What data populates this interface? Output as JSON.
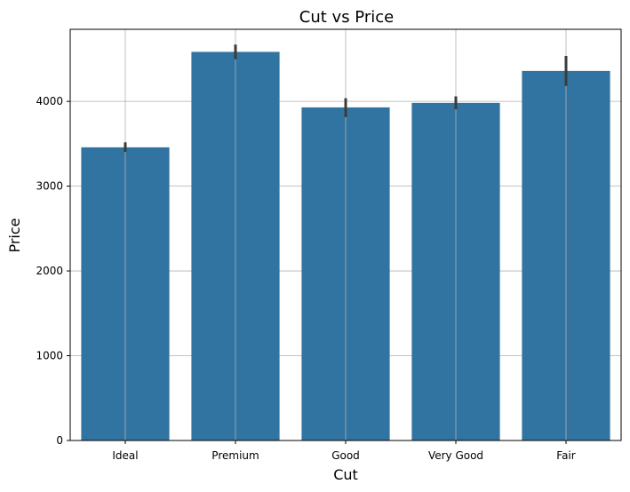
{
  "chart_data": {
    "type": "bar",
    "title": "Cut vs Price",
    "xlabel": "Cut",
    "ylabel": "Price",
    "categories": [
      "Ideal",
      "Premium",
      "Good",
      "Very Good",
      "Fair"
    ],
    "values": [
      3458,
      4584,
      3929,
      3982,
      4359
    ],
    "error_low": [
      3403,
      4497,
      3814,
      3906,
      4181
    ],
    "error_high": [
      3517,
      4670,
      4037,
      4059,
      4536
    ],
    "ylim": [
      0,
      4850
    ],
    "yticks": [
      0,
      1000,
      2000,
      3000,
      4000
    ],
    "grid": true,
    "colors": {
      "bar": "#3274a1",
      "error": "#3b3b3b",
      "grid": "#b0b0b0",
      "axis": "#000000"
    }
  }
}
